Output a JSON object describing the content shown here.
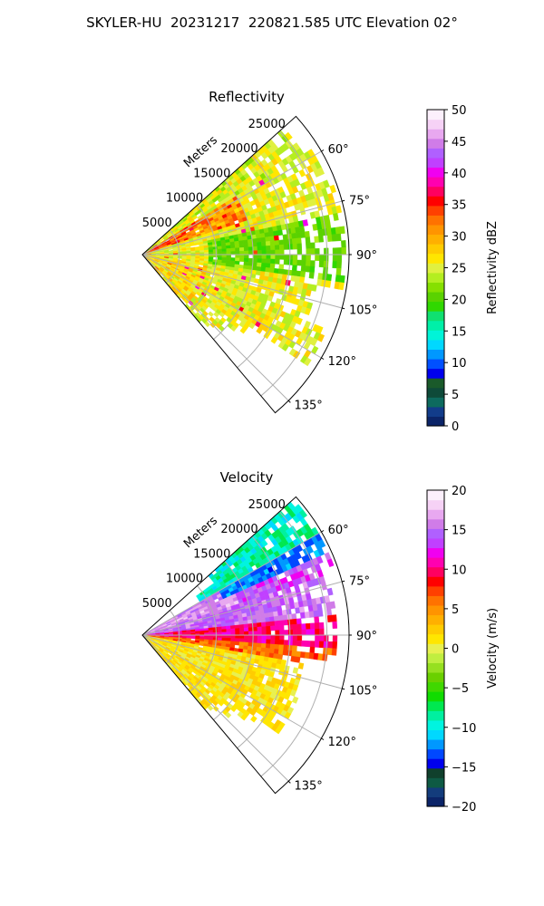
{
  "figure_title": "SKYLER-HU  20231217  220821.585 UTC Elevation 02°",
  "chart_data": [
    {
      "type": "heatmap",
      "subtype": "polar-sector (PPI radar)",
      "title": "Reflectivity",
      "r_axis_label": "Meters",
      "r_ticks": [
        5000,
        10000,
        15000,
        20000,
        25000
      ],
      "r_tick_labels": [
        "5000",
        "10000",
        "15000",
        "20000",
        "25000"
      ],
      "r_max": 28000,
      "theta_range_deg": [
        48,
        140
      ],
      "theta_ticks": [
        60,
        75,
        90,
        105,
        120,
        135
      ],
      "theta_tick_labels": [
        "60°",
        "75°",
        "90°",
        "105°",
        "120°",
        "135°"
      ],
      "grid": true,
      "colorbar": {
        "label": "Reflectivity dBZ",
        "min": 0,
        "max": 50,
        "ticks": [
          0,
          5,
          10,
          15,
          20,
          25,
          30,
          35,
          40,
          45,
          50
        ],
        "tick_labels": [
          "0",
          "5",
          "10",
          "15",
          "20",
          "25",
          "30",
          "35",
          "40",
          "45",
          "50"
        ]
      },
      "dominant_values": "Mostly 20–30 dBZ (green–yellow) with a 30–35 dBZ (orange–red) band near 60–70° close to the radar"
    },
    {
      "type": "heatmap",
      "subtype": "polar-sector (PPI radar)",
      "title": "Velocity",
      "r_axis_label": "Meters",
      "r_ticks": [
        5000,
        10000,
        15000,
        20000,
        25000
      ],
      "r_tick_labels": [
        "5000",
        "10000",
        "15000",
        "20000",
        "25000"
      ],
      "r_max": 28000,
      "theta_range_deg": [
        48,
        140
      ],
      "theta_ticks": [
        60,
        75,
        90,
        105,
        120,
        135
      ],
      "theta_tick_labels": [
        "60°",
        "75°",
        "90°",
        "105°",
        "120°",
        "135°"
      ],
      "grid": true,
      "colorbar": {
        "label": "Velocity (m/s)",
        "min": -20,
        "max": 20,
        "ticks": [
          -20,
          -15,
          -10,
          -5,
          0,
          5,
          10,
          15,
          20
        ],
        "tick_labels": [
          "−20",
          "−15",
          "−10",
          "−5",
          "0",
          "5",
          "10",
          "15",
          "20"
        ]
      },
      "dominant_values": "Approximately −5 to −10 m/s at 55–70°, +13 to +17 m/s at 72–85°, +8 to +12 m/s at 85–95°, +5 m/s at 95–100°, 0 to +2 m/s at 100–140°"
    }
  ],
  "colors": {
    "reflectivity_scale": [
      "#0b2468",
      "#123c8a",
      "#0d6a5e",
      "#0e4a39",
      "#1a5a2a",
      "#0000ee",
      "#0050ff",
      "#0098ff",
      "#00d8ff",
      "#00f4d8",
      "#00f0a8",
      "#10e070",
      "#30d800",
      "#5ad200",
      "#86e000",
      "#b4ee20",
      "#e0f040",
      "#ffe600",
      "#ffcc00",
      "#ffb000",
      "#ff9400",
      "#ff7200",
      "#ff4000",
      "#ff0000",
      "#ff0060",
      "#ff00b0",
      "#f000f0",
      "#c040ff",
      "#b060ff",
      "#d07ce8",
      "#e8a8f0",
      "#f6d2f6",
      "#fcf0fc"
    ],
    "velocity_scale": [
      "#0b2468",
      "#133c7c",
      "#0e5a44",
      "#10402c",
      "#0000ee",
      "#0048ff",
      "#0098ff",
      "#00d8ff",
      "#00f4e0",
      "#00f0a0",
      "#00e850",
      "#10dc00",
      "#40d800",
      "#6ad000",
      "#96e020",
      "#c0ee40",
      "#e8f050",
      "#ffe600",
      "#ffcc00",
      "#ffb000",
      "#ff9400",
      "#ff7200",
      "#ff4000",
      "#ff0000",
      "#ff0060",
      "#ff00b0",
      "#f000f0",
      "#c040ff",
      "#b060ff",
      "#d07ce8",
      "#e8a8f0",
      "#f6d2f6",
      "#fcf0fc"
    ]
  }
}
